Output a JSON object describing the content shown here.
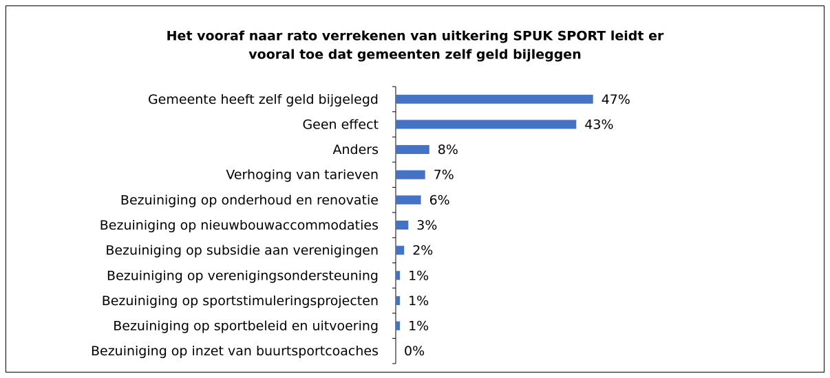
{
  "chart_data": {
    "type": "barh",
    "title": [
      "Het vooraf naar rato verrekenen van uitkering SPUK SPORT leidt er",
      "vooral toe dat gemeenten zelf geld bijleggen"
    ],
    "categories": [
      "Gemeente heeft zelf geld bijgelegd",
      "Geen effect",
      "Anders",
      "Verhoging van tarieven",
      "Bezuiniging op onderhoud en renovatie",
      "Bezuiniging op nieuwbouwaccommodaties",
      "Bezuiniging op subsidie aan verenigingen",
      "Bezuiniging op verenigingsondersteuning",
      "Bezuiniging op sportstimuleringsprojecten",
      "Bezuiniging op sportbeleid en uitvoering",
      "Bezuiniging op inzet van buurtsportcoaches"
    ],
    "values": [
      47,
      43,
      8,
      7,
      6,
      3,
      2,
      1,
      1,
      1,
      0
    ],
    "value_labels": [
      "47%",
      "43%",
      "8%",
      "7%",
      "6%",
      "3%",
      "2%",
      "1%",
      "1%",
      "1%",
      "0%"
    ],
    "color": "#4472c4"
  }
}
